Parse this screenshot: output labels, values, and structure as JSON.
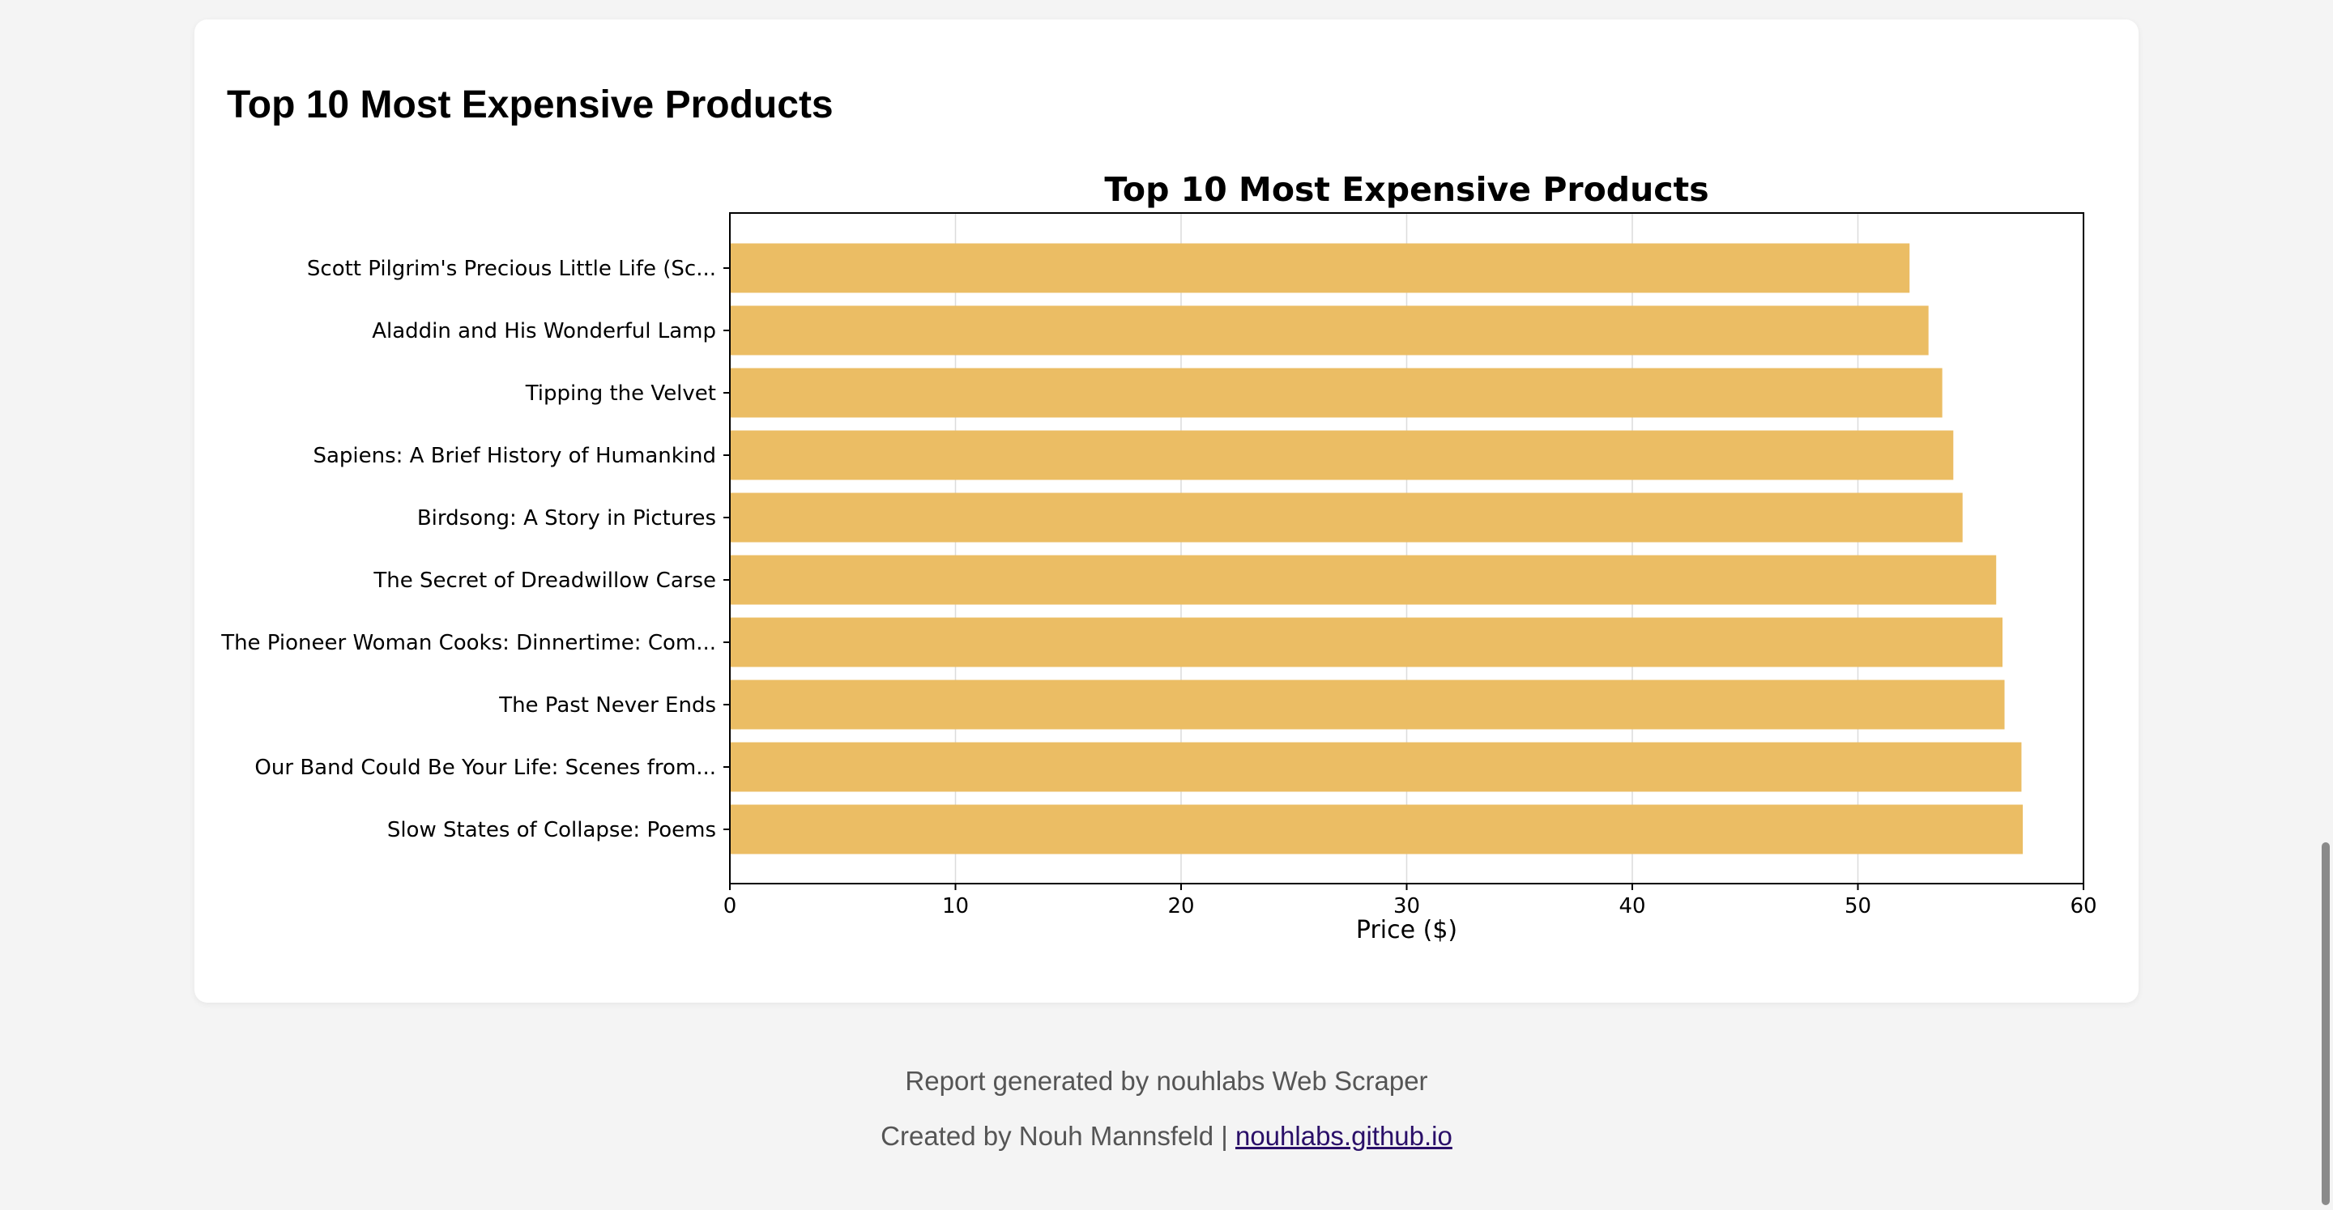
{
  "section": {
    "title": "Top 10 Most Expensive Products"
  },
  "chart_data": {
    "type": "bar",
    "orientation": "horizontal",
    "title": "Top 10 Most Expensive Products",
    "xlabel": "Price ($)",
    "ylabel": "",
    "xlim": [
      0,
      60
    ],
    "xticks": [
      0,
      10,
      20,
      30,
      40,
      50,
      60
    ],
    "grid": "vertical",
    "bar_color": "#ebbd64",
    "categories": [
      "Scott Pilgrim's Precious Little Life (Sc...",
      "Aladdin and His Wonderful Lamp",
      "Tipping the Velvet",
      "Sapiens: A Brief History of Humankind",
      "Birdsong: A Story in Pictures",
      "The Secret of Dreadwillow Carse",
      "The Pioneer Woman Cooks: Dinnertime: Com...",
      "The Past Never Ends",
      "Our Band Could Be Your Life: Scenes from...",
      "Slow States of Collapse: Poems"
    ],
    "values": [
      52.29,
      53.13,
      53.74,
      54.23,
      54.64,
      56.13,
      56.41,
      56.5,
      57.25,
      57.31
    ]
  },
  "footer": {
    "report_text": "Report generated by nouhlabs Web Scraper",
    "created_by_text": "Created by Nouh Mannsfeld | ",
    "link_text": "nouhlabs.github.io"
  }
}
